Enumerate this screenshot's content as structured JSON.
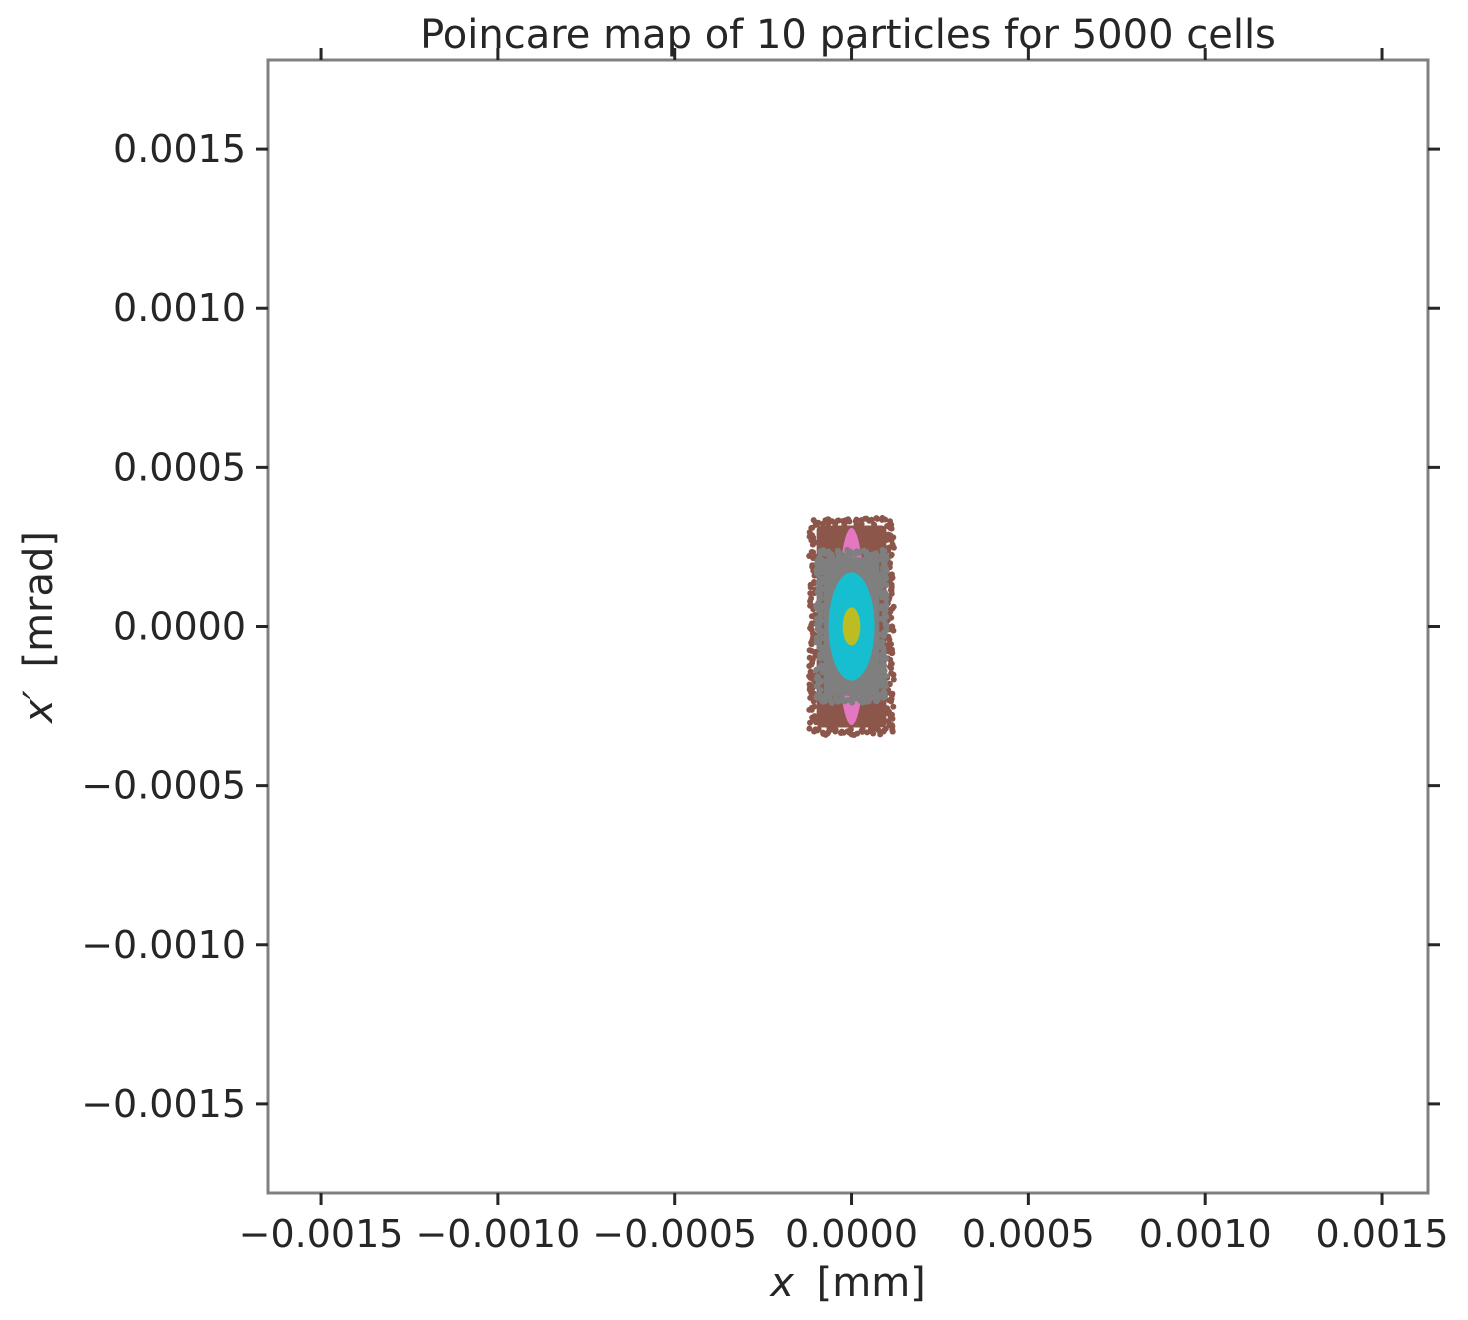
{
  "chart_data": {
    "type": "scatter",
    "title": "Poincare map of 10 particles for 5000 cells",
    "xlabel_var": "x",
    "xlabel_unit": "[mm]",
    "ylabel_var": "x′",
    "ylabel_unit": "[mrad]",
    "xlim": [
      -0.00165,
      0.00163
    ],
    "ylim": [
      -0.00178,
      0.00178
    ],
    "xticks": [
      -0.0015,
      -0.001,
      -0.0005,
      0.0,
      0.0005,
      0.001,
      0.0015
    ],
    "yticks": [
      0.0015,
      0.001,
      0.0005,
      0.0,
      -0.0005,
      -0.001,
      -0.0015
    ],
    "xtick_labels": [
      "−0.0015",
      "−0.0010",
      "−0.0005",
      "0.0000",
      "0.0005",
      "0.0010",
      "0.0015"
    ],
    "ytick_labels": [
      "0.0015",
      "0.0010",
      "0.0005",
      "0.0000",
      "−0.0005",
      "−0.0010",
      "−0.0015"
    ],
    "grid": false,
    "series": [
      {
        "shape": "rect",
        "color": "#8c564b",
        "xmax": 0.00011,
        "ymax": 0.00033,
        "rough": true
      },
      {
        "shape": "ellipse",
        "color": "#e377c2",
        "xmax": 4e-05,
        "ymax": 0.00031
      },
      {
        "shape": "rect",
        "color": "#7f7f7f",
        "xmax": 9e-05,
        "ymax": 0.00023,
        "rough": true
      },
      {
        "shape": "ellipse",
        "color": "#17becf",
        "xmax": 6.5e-05,
        "ymax": 0.00017
      },
      {
        "shape": "ellipse",
        "color": "#bcbd22",
        "xmax": 2.5e-05,
        "ymax": 6e-05
      }
    ]
  }
}
